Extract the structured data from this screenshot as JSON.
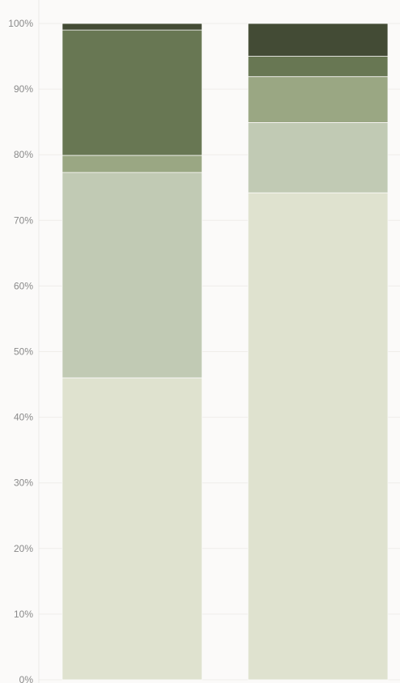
{
  "chart_data": {
    "type": "bar",
    "stacked": true,
    "percent": true,
    "title": "",
    "xlabel": "",
    "ylabel": "",
    "ylim": [
      0,
      100
    ],
    "yticks": [
      "0%",
      "10%",
      "20%",
      "30%",
      "40%",
      "50%",
      "60%",
      "70%",
      "80%",
      "90%",
      "100%"
    ],
    "grid": true,
    "legend": "none",
    "categories": [
      "",
      ""
    ],
    "series": [
      {
        "color": "#dfe2cf",
        "values": [
          46.0,
          74.2
        ]
      },
      {
        "color": "#c1cab4",
        "values": [
          31.3,
          10.7
        ]
      },
      {
        "color": "#9aa783",
        "values": [
          2.6,
          7.0
        ]
      },
      {
        "color": "#687753",
        "values": [
          19.1,
          3.1
        ]
      },
      {
        "color": "#434b35",
        "values": [
          1.0,
          5.0
        ]
      }
    ]
  }
}
